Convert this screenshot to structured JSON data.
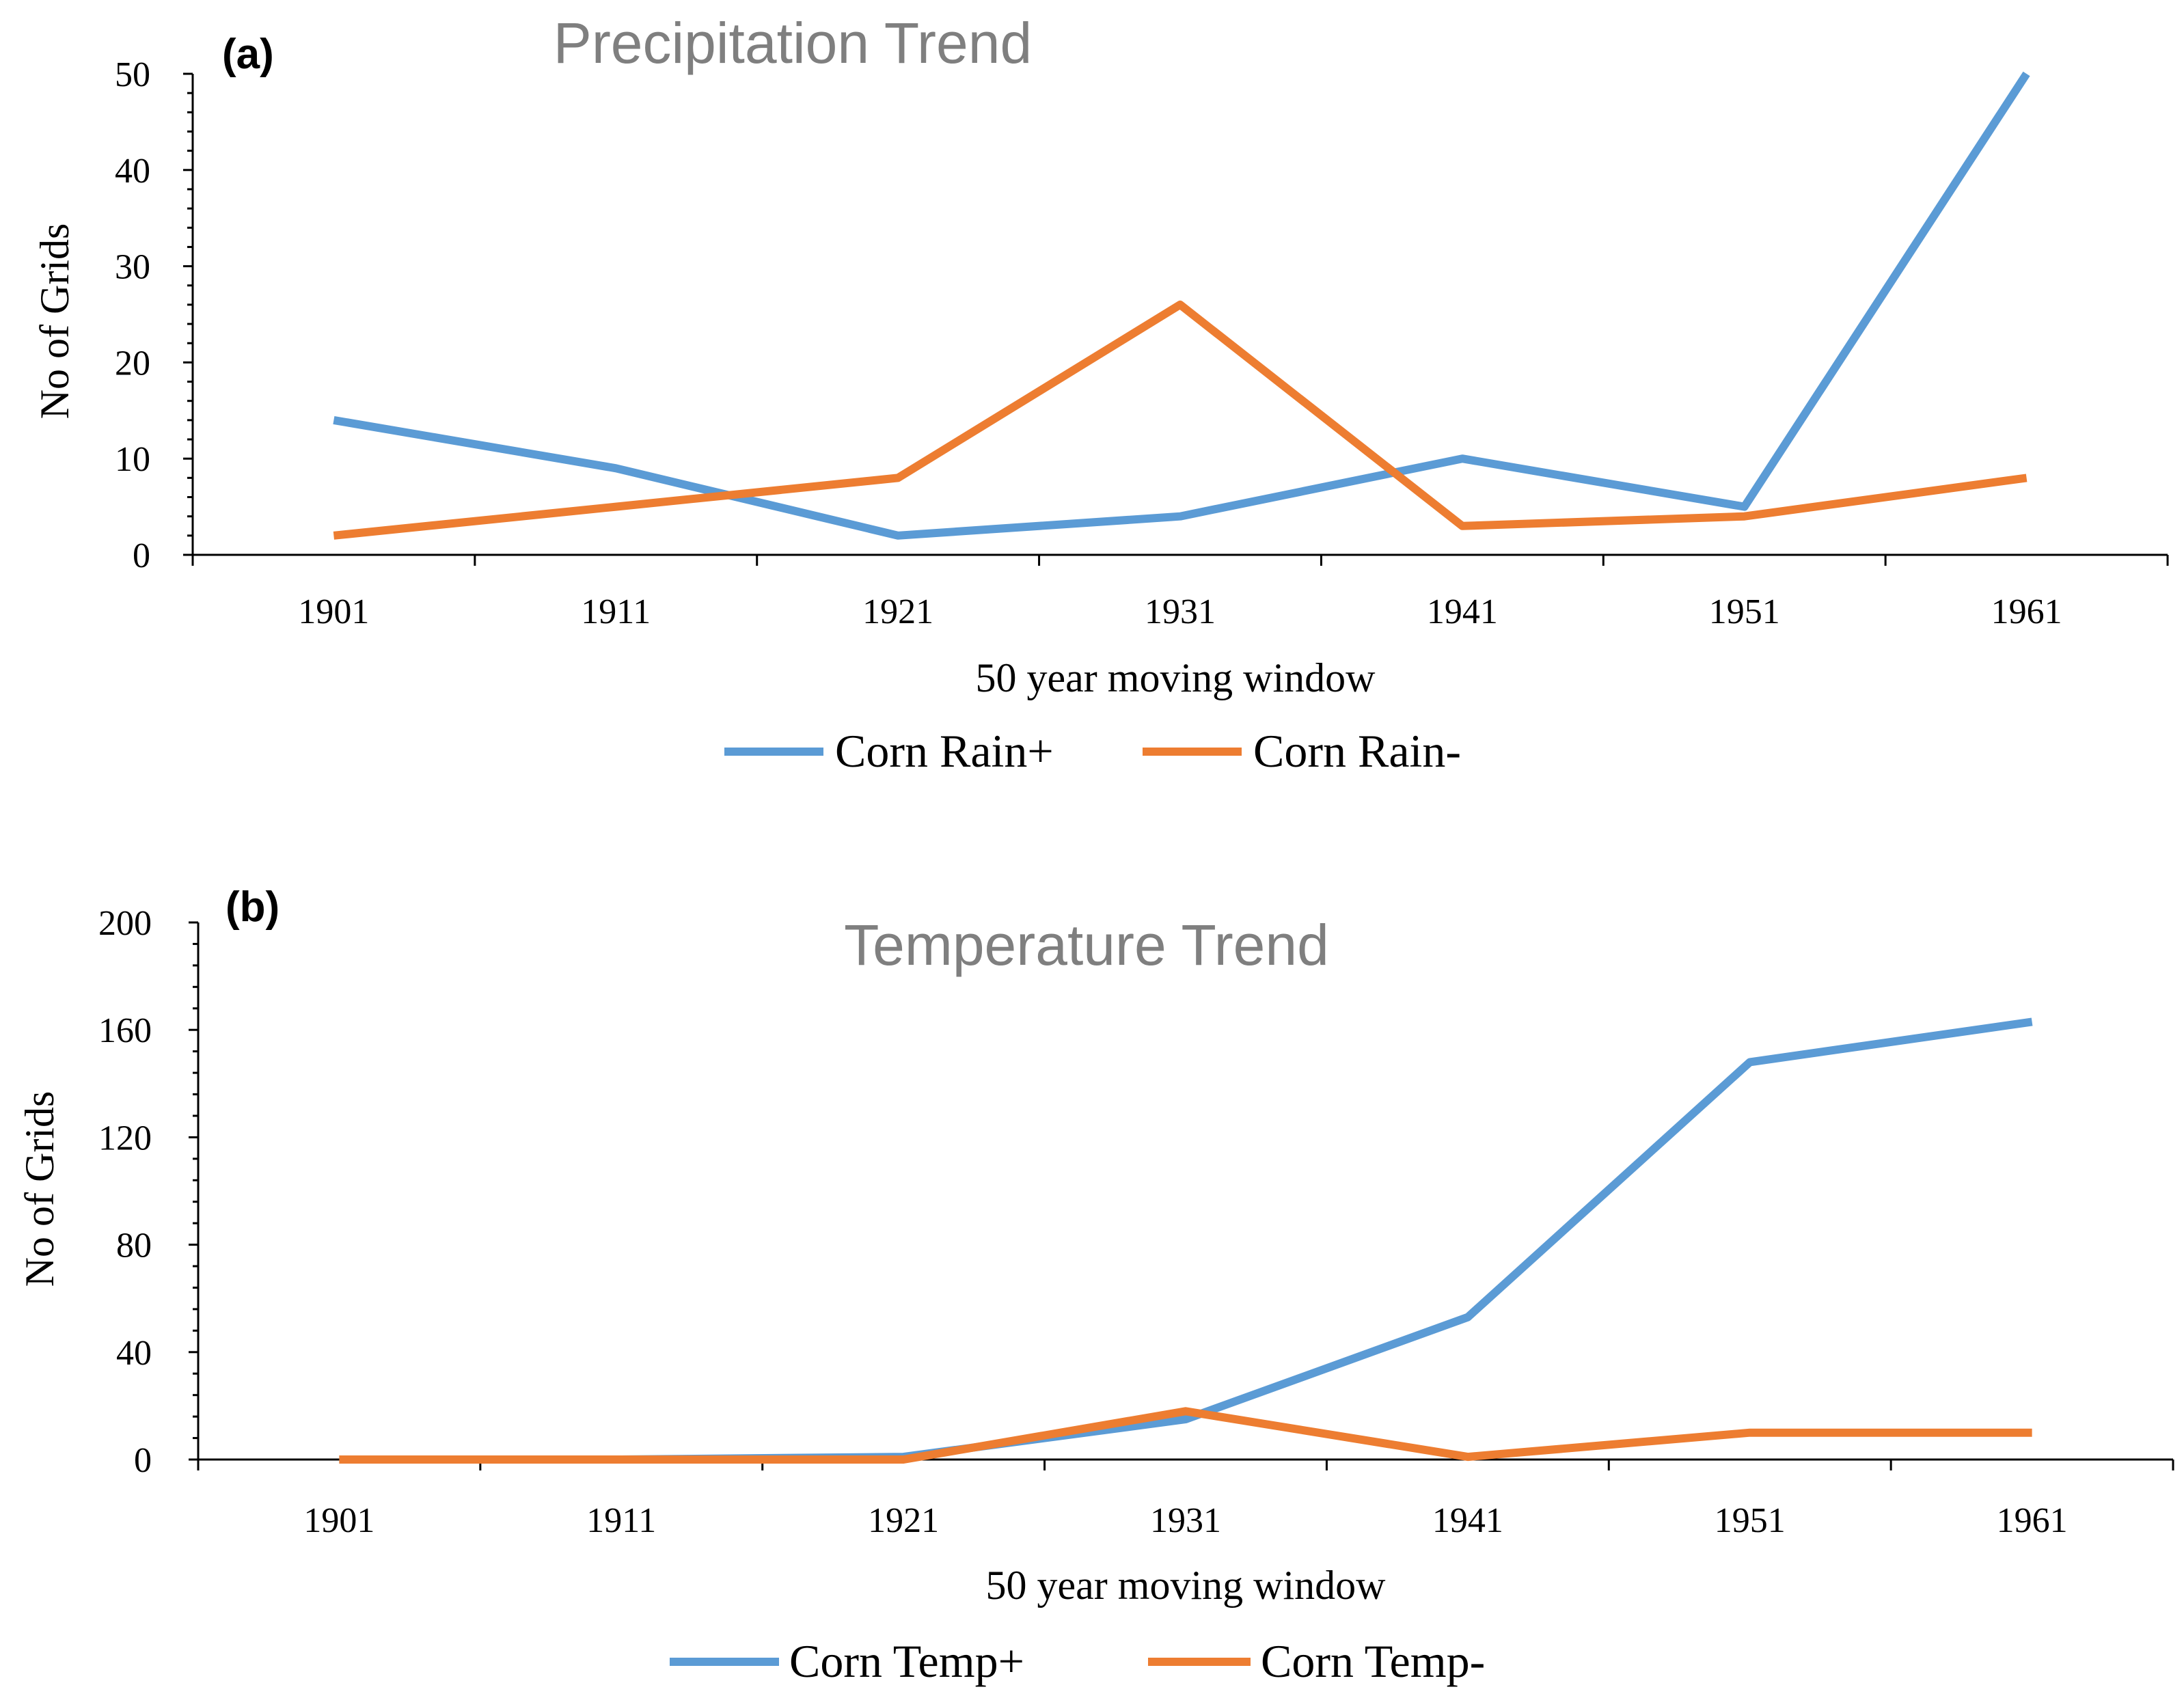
{
  "colors": {
    "series_a": "#5b9bd5",
    "series_b": "#ed7d31",
    "title": "#7f7f7f"
  },
  "chart_data": [
    {
      "type": "line",
      "panel_label": "(a)",
      "title": "Precipitation Trend",
      "xlabel": "50  year moving window",
      "ylabel": "No of Grids",
      "categories": [
        "1901",
        "1911",
        "1921",
        "1931",
        "1941",
        "1951",
        "1961"
      ],
      "yticks": [
        "0",
        "10",
        "20",
        "30",
        "40",
        "50"
      ],
      "ylim": [
        0,
        50
      ],
      "grid": false,
      "legend_position": "bottom",
      "series": [
        {
          "name": "Corn Rain+",
          "color": "#5b9bd5",
          "values": [
            14,
            9,
            2,
            4,
            10,
            5,
            50
          ]
        },
        {
          "name": "Corn Rain-",
          "color": "#ed7d31",
          "values": [
            2,
            5,
            8,
            26,
            3,
            4,
            8
          ]
        }
      ]
    },
    {
      "type": "line",
      "panel_label": "(b)",
      "title": "Temperature Trend",
      "xlabel": "50  year moving window",
      "ylabel": "No of Grids",
      "categories": [
        "1901",
        "1911",
        "1921",
        "1931",
        "1941",
        "1951",
        "1961"
      ],
      "yticks": [
        "0",
        "40",
        "80",
        "120",
        "160",
        "200"
      ],
      "ylim": [
        0,
        200
      ],
      "grid": false,
      "legend_position": "bottom",
      "series": [
        {
          "name": "Corn Temp+",
          "color": "#5b9bd5",
          "values": [
            0,
            0,
            1,
            15,
            53,
            148,
            163
          ]
        },
        {
          "name": "Corn Temp-",
          "color": "#ed7d31",
          "values": [
            0,
            0,
            0,
            18,
            1,
            10,
            10
          ]
        }
      ]
    }
  ]
}
